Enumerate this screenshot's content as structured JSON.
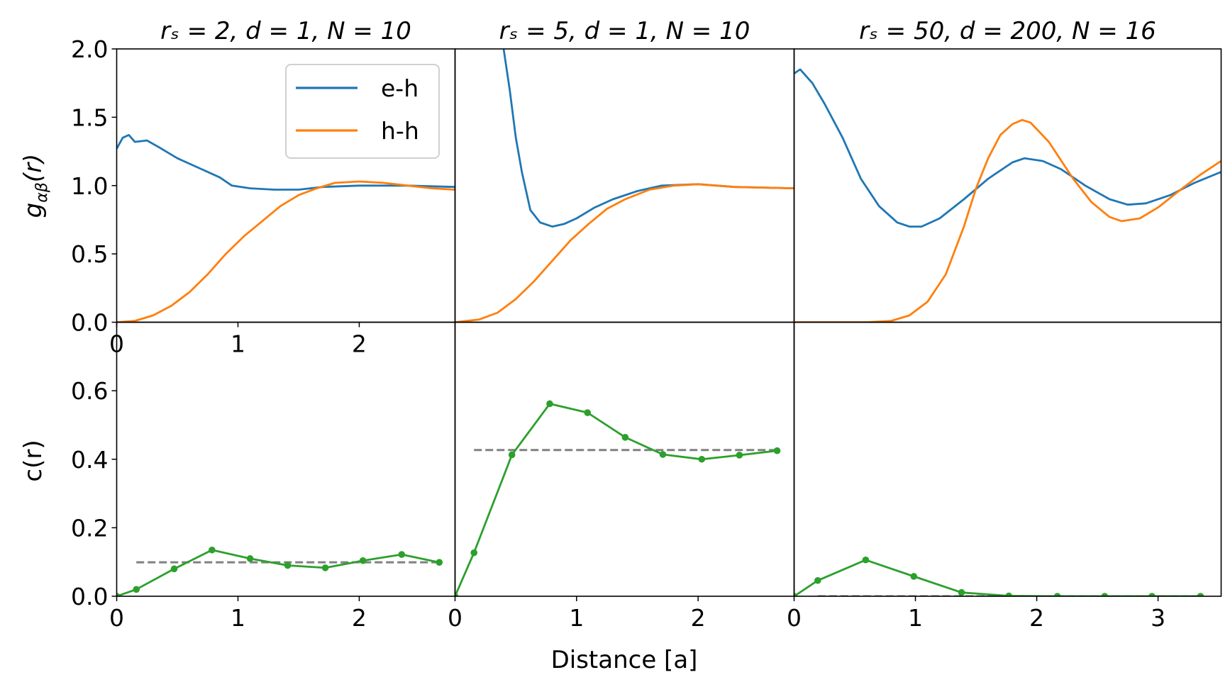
{
  "chart_data": [
    {
      "type": "line",
      "row": "top",
      "column": 1,
      "title": "rₛ = 2, d = 1, N = 10",
      "ylabel": {
        "base": "g",
        "sub": "αβ",
        "arg": "(r)"
      },
      "xlim": [
        0,
        2.79
      ],
      "ylim": [
        0,
        2.0
      ],
      "xticks": [
        "0",
        "1",
        "2"
      ],
      "yticks": [
        "0.0",
        "0.5",
        "1.0",
        "1.5",
        "2.0"
      ],
      "legend": {
        "placement": "top-right",
        "entries": [
          "e-h",
          "h-h"
        ]
      },
      "series": [
        {
          "name": "e-h",
          "color": "#1f77b4",
          "points": [
            [
              0,
              1.27
            ],
            [
              0.05,
              1.35
            ],
            [
              0.1,
              1.37
            ],
            [
              0.15,
              1.32
            ],
            [
              0.25,
              1.33
            ],
            [
              0.35,
              1.28
            ],
            [
              0.5,
              1.2
            ],
            [
              0.7,
              1.12
            ],
            [
              0.85,
              1.06
            ],
            [
              0.95,
              1.0
            ],
            [
              1.1,
              0.98
            ],
            [
              1.3,
              0.97
            ],
            [
              1.5,
              0.97
            ],
            [
              1.7,
              0.99
            ],
            [
              2.0,
              1.0
            ],
            [
              2.4,
              1.0
            ],
            [
              2.79,
              0.99
            ]
          ]
        },
        {
          "name": "h-h",
          "color": "#ff7f0e",
          "points": [
            [
              0,
              0
            ],
            [
              0.15,
              0.01
            ],
            [
              0.3,
              0.05
            ],
            [
              0.45,
              0.12
            ],
            [
              0.6,
              0.22
            ],
            [
              0.75,
              0.35
            ],
            [
              0.9,
              0.5
            ],
            [
              1.05,
              0.63
            ],
            [
              1.2,
              0.74
            ],
            [
              1.35,
              0.85
            ],
            [
              1.5,
              0.93
            ],
            [
              1.65,
              0.98
            ],
            [
              1.8,
              1.02
            ],
            [
              2.0,
              1.03
            ],
            [
              2.2,
              1.02
            ],
            [
              2.4,
              1.0
            ],
            [
              2.6,
              0.98
            ],
            [
              2.79,
              0.97
            ]
          ]
        }
      ]
    },
    {
      "type": "line",
      "row": "top",
      "column": 2,
      "title": "rₛ = 5, d = 1, N = 10",
      "xlim": [
        0,
        2.79
      ],
      "ylim": [
        0,
        2.0
      ],
      "series": [
        {
          "name": "e-h",
          "color": "#1f77b4",
          "points": [
            [
              0.4,
              2.0
            ],
            [
              0.45,
              1.7
            ],
            [
              0.5,
              1.35
            ],
            [
              0.55,
              1.1
            ],
            [
              0.62,
              0.82
            ],
            [
              0.7,
              0.73
            ],
            [
              0.8,
              0.7
            ],
            [
              0.9,
              0.72
            ],
            [
              1.0,
              0.76
            ],
            [
              1.15,
              0.84
            ],
            [
              1.3,
              0.9
            ],
            [
              1.5,
              0.96
            ],
            [
              1.7,
              1.0
            ],
            [
              2.0,
              1.01
            ],
            [
              2.3,
              0.99
            ],
            [
              2.79,
              0.98
            ]
          ]
        },
        {
          "name": "h-h",
          "color": "#ff7f0e",
          "points": [
            [
              0,
              0
            ],
            [
              0.2,
              0.02
            ],
            [
              0.35,
              0.07
            ],
            [
              0.5,
              0.17
            ],
            [
              0.65,
              0.3
            ],
            [
              0.8,
              0.45
            ],
            [
              0.95,
              0.6
            ],
            [
              1.1,
              0.72
            ],
            [
              1.25,
              0.83
            ],
            [
              1.4,
              0.9
            ],
            [
              1.6,
              0.97
            ],
            [
              1.8,
              1.0
            ],
            [
              2.0,
              1.01
            ],
            [
              2.3,
              0.99
            ],
            [
              2.79,
              0.98
            ]
          ]
        }
      ]
    },
    {
      "type": "line",
      "row": "top",
      "column": 3,
      "title": "rₛ = 50, d = 200, N = 16",
      "xlim": [
        0,
        3.52
      ],
      "ylim": [
        0,
        2.0
      ],
      "series": [
        {
          "name": "e-h",
          "color": "#1f77b4",
          "points": [
            [
              0,
              1.82
            ],
            [
              0.05,
              1.85
            ],
            [
              0.15,
              1.75
            ],
            [
              0.25,
              1.6
            ],
            [
              0.4,
              1.35
            ],
            [
              0.55,
              1.05
            ],
            [
              0.7,
              0.85
            ],
            [
              0.85,
              0.73
            ],
            [
              0.95,
              0.7
            ],
            [
              1.05,
              0.7
            ],
            [
              1.2,
              0.76
            ],
            [
              1.4,
              0.9
            ],
            [
              1.6,
              1.05
            ],
            [
              1.8,
              1.17
            ],
            [
              1.9,
              1.2
            ],
            [
              2.05,
              1.18
            ],
            [
              2.2,
              1.12
            ],
            [
              2.4,
              1.0
            ],
            [
              2.6,
              0.9
            ],
            [
              2.75,
              0.86
            ],
            [
              2.9,
              0.87
            ],
            [
              3.1,
              0.93
            ],
            [
              3.3,
              1.02
            ],
            [
              3.52,
              1.1
            ]
          ]
        },
        {
          "name": "h-h",
          "color": "#ff7f0e",
          "points": [
            [
              0,
              0
            ],
            [
              0.6,
              0
            ],
            [
              0.8,
              0.01
            ],
            [
              0.95,
              0.05
            ],
            [
              1.1,
              0.15
            ],
            [
              1.25,
              0.35
            ],
            [
              1.4,
              0.7
            ],
            [
              1.5,
              0.98
            ],
            [
              1.6,
              1.2
            ],
            [
              1.7,
              1.37
            ],
            [
              1.8,
              1.45
            ],
            [
              1.88,
              1.48
            ],
            [
              1.95,
              1.46
            ],
            [
              2.1,
              1.32
            ],
            [
              2.3,
              1.05
            ],
            [
              2.45,
              0.88
            ],
            [
              2.6,
              0.77
            ],
            [
              2.7,
              0.74
            ],
            [
              2.85,
              0.76
            ],
            [
              3.0,
              0.84
            ],
            [
              3.2,
              0.98
            ],
            [
              3.35,
              1.08
            ],
            [
              3.52,
              1.18
            ]
          ]
        }
      ]
    },
    {
      "type": "line",
      "row": "bottom",
      "column": 1,
      "ylabel": "c(r)",
      "xlim": [
        0,
        2.79
      ],
      "ylim": [
        0,
        0.8
      ],
      "xticks": [
        "0",
        "1",
        "2"
      ],
      "yticks": [
        "0.0",
        "0.2",
        "0.4",
        "0.6"
      ],
      "series": [
        {
          "color": "#2ca02c",
          "markers": true,
          "points": [
            [
              0,
              0
            ],
            [
              0.162,
              0.02
            ],
            [
              0.474,
              0.08
            ],
            [
              0.786,
              0.135
            ],
            [
              1.1,
              0.11
            ],
            [
              1.41,
              0.09
            ],
            [
              1.72,
              0.083
            ],
            [
              2.03,
              0.104
            ],
            [
              2.35,
              0.122
            ],
            [
              2.66,
              0.099
            ]
          ]
        }
      ],
      "reference": {
        "color": "#808080",
        "style": "dashed",
        "y": 0.099,
        "x": [
          0.162,
          2.66
        ]
      }
    },
    {
      "type": "line",
      "row": "bottom",
      "column": 2,
      "xlim": [
        0,
        2.79
      ],
      "ylim": [
        0,
        0.8
      ],
      "xticks": [
        "0",
        "1",
        "2"
      ],
      "series": [
        {
          "color": "#2ca02c",
          "markers": true,
          "points": [
            [
              0,
              0
            ],
            [
              0.156,
              0.127
            ],
            [
              0.468,
              0.413
            ],
            [
              0.779,
              0.562
            ],
            [
              1.09,
              0.536
            ],
            [
              1.4,
              0.464
            ],
            [
              1.71,
              0.414
            ],
            [
              2.03,
              0.4
            ],
            [
              2.34,
              0.412
            ],
            [
              2.65,
              0.425
            ]
          ]
        }
      ],
      "reference": {
        "color": "#808080",
        "style": "dashed",
        "y": 0.427,
        "x": [
          0.156,
          2.65
        ]
      }
    },
    {
      "type": "line",
      "row": "bottom",
      "column": 3,
      "xlim": [
        0,
        3.52
      ],
      "ylim": [
        0,
        0.8
      ],
      "xticks": [
        "0",
        "1",
        "2",
        "3"
      ],
      "series": [
        {
          "color": "#2ca02c",
          "markers": true,
          "points": [
            [
              0,
              0
            ],
            [
              0.195,
              0.046
            ],
            [
              0.59,
              0.106
            ],
            [
              0.987,
              0.058
            ],
            [
              1.38,
              0.011
            ],
            [
              1.77,
              0.001
            ],
            [
              2.17,
              0
            ],
            [
              2.56,
              0
            ],
            [
              2.95,
              0
            ],
            [
              3.35,
              0
            ]
          ]
        }
      ],
      "reference": {
        "color": "#808080",
        "style": "dashed",
        "y": 0,
        "x": [
          0.195,
          3.35
        ]
      }
    }
  ],
  "xlabel": "Distance [a]"
}
